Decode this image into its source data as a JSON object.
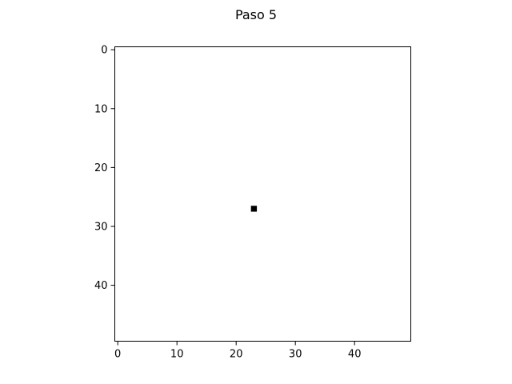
{
  "chart_data": {
    "type": "heatmap",
    "title": "Paso 5",
    "grid_size": [
      50,
      50
    ],
    "xlim": [
      -0.5,
      49.5
    ],
    "ylim": [
      49.5,
      -0.5
    ],
    "y_axis_inverted": true,
    "xticks": [
      0,
      10,
      20,
      30,
      40
    ],
    "yticks": [
      0,
      10,
      20,
      30,
      40
    ],
    "xlabel": "",
    "ylabel": "",
    "grid": false,
    "background_color": "#ffffff",
    "active_color": "#000000",
    "active_cells": [
      {
        "x": 23,
        "y": 27,
        "value": 1
      }
    ]
  }
}
